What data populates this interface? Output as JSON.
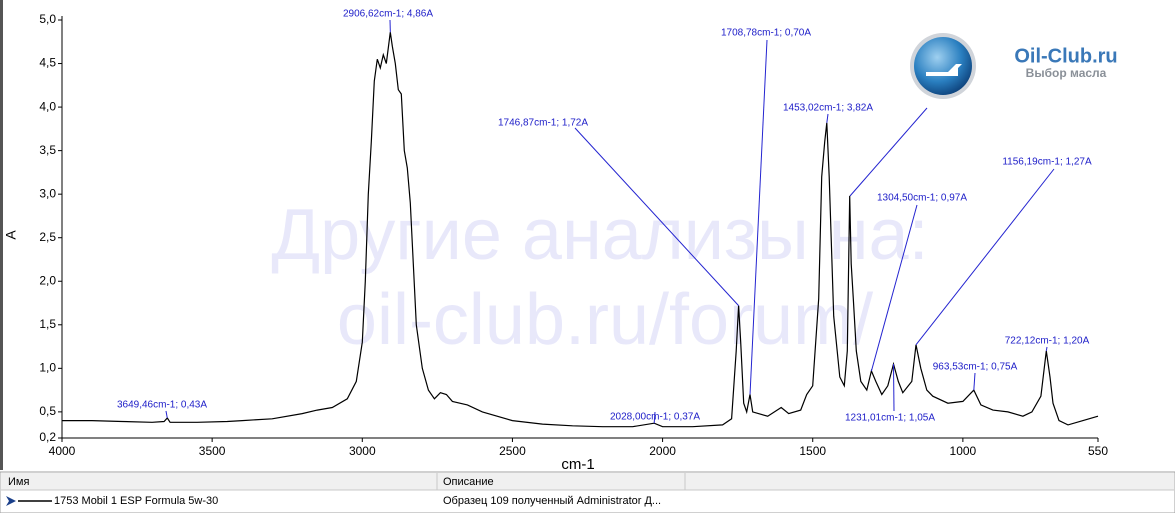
{
  "chart_data": {
    "type": "line",
    "xlabel": "cm-1",
    "ylabel": "A",
    "x_reversed": true,
    "xlim": [
      4000,
      550
    ],
    "ylim": [
      0.2,
      5.0
    ],
    "xticks": [
      4000,
      3500,
      3000,
      2500,
      2000,
      1500,
      1000,
      550
    ],
    "yticks": [
      {
        "value": 0.2,
        "label": "0,2"
      },
      {
        "value": 0.5,
        "label": "0,5"
      },
      {
        "value": 1.0,
        "label": "1,0"
      },
      {
        "value": 1.5,
        "label": "1,5"
      },
      {
        "value": 2.0,
        "label": "2,0"
      },
      {
        "value": 2.5,
        "label": "2,5"
      },
      {
        "value": 3.0,
        "label": "3,0"
      },
      {
        "value": 3.5,
        "label": "3,5"
      },
      {
        "value": 4.0,
        "label": "4,0"
      },
      {
        "value": 4.5,
        "label": "4,5"
      },
      {
        "value": 5.0,
        "label": "5,0"
      }
    ],
    "series": [
      {
        "name": "1753 Mobil 1 ESP Formula 5w-30",
        "color": "#000000",
        "x": [
          4000,
          3900,
          3800,
          3700,
          3660,
          3649.46,
          3640,
          3550,
          3450,
          3400,
          3300,
          3200,
          3150,
          3100,
          3050,
          3020,
          3000,
          2990,
          2980,
          2970,
          2960,
          2950,
          2940,
          2930,
          2920,
          2906.62,
          2900,
          2890,
          2880,
          2870,
          2860,
          2850,
          2840,
          2830,
          2820,
          2800,
          2780,
          2760,
          2740,
          2720,
          2700,
          2650,
          2600,
          2500,
          2400,
          2300,
          2200,
          2100,
          2028,
          2000,
          1900,
          1800,
          1770,
          1755,
          1746.87,
          1740,
          1730,
          1720,
          1708.78,
          1700,
          1650,
          1605,
          1580,
          1540,
          1520,
          1500,
          1480,
          1470,
          1460,
          1453.02,
          1445,
          1430,
          1410,
          1395,
          1385,
          1377,
          1372,
          1365,
          1355,
          1340,
          1320,
          1304.5,
          1290,
          1270,
          1250,
          1231.01,
          1215,
          1200,
          1170,
          1156.19,
          1140,
          1120,
          1100,
          1050,
          1000,
          963.53,
          940,
          900,
          850,
          800,
          770,
          740,
          722.12,
          710,
          700,
          680,
          650,
          600,
          550
        ],
        "values": [
          0.4,
          0.4,
          0.39,
          0.38,
          0.39,
          0.43,
          0.38,
          0.38,
          0.39,
          0.4,
          0.42,
          0.48,
          0.52,
          0.55,
          0.65,
          0.85,
          1.3,
          2.0,
          3.0,
          3.6,
          4.3,
          4.55,
          4.45,
          4.6,
          4.5,
          4.86,
          4.7,
          4.5,
          4.2,
          4.15,
          3.5,
          3.3,
          2.9,
          2.2,
          1.5,
          1.0,
          0.75,
          0.65,
          0.72,
          0.7,
          0.62,
          0.58,
          0.5,
          0.4,
          0.36,
          0.34,
          0.33,
          0.33,
          0.37,
          0.33,
          0.33,
          0.35,
          0.42,
          1.2,
          1.72,
          1.3,
          0.6,
          0.5,
          0.7,
          0.5,
          0.45,
          0.55,
          0.48,
          0.52,
          0.7,
          0.8,
          1.8,
          3.2,
          3.6,
          3.82,
          3.2,
          1.6,
          0.9,
          0.8,
          1.2,
          2.98,
          2.2,
          1.8,
          1.2,
          0.85,
          0.75,
          0.97,
          0.85,
          0.7,
          0.8,
          1.05,
          0.85,
          0.72,
          0.85,
          1.27,
          1.0,
          0.75,
          0.68,
          0.6,
          0.62,
          0.75,
          0.58,
          0.52,
          0.5,
          0.45,
          0.5,
          0.68,
          1.2,
          0.9,
          0.6,
          0.4,
          0.35,
          0.4,
          0.45
        ]
      }
    ],
    "annotations": [
      {
        "label": "3649,46cm-1; 0,43A",
        "x": 3649.46,
        "y": 0.43
      },
      {
        "label": "2906,62cm-1; 4,86A",
        "x": 2906.62,
        "y": 4.86
      },
      {
        "label": "1746,87cm-1; 1,72A",
        "x": 1746.87,
        "y": 1.72
      },
      {
        "label": "1708,78cm-1; 0,70A",
        "x": 1708.78,
        "y": 0.7
      },
      {
        "label": "1453,02cm-1; 3,82A",
        "x": 1453.02,
        "y": 3.82
      },
      {
        "label": "1304,50cm-1; 0,97A",
        "x": 1304.5,
        "y": 0.97
      },
      {
        "label": "1156,19cm-1; 1,27A",
        "x": 1156.19,
        "y": 1.27
      },
      {
        "label": "963,53cm-1; 0,75A",
        "x": 963.53,
        "y": 0.75
      },
      {
        "label": "722,12cm-1; 1,20A",
        "x": 722.12,
        "y": 1.2
      },
      {
        "label": "2028,00cm-1; 0,37A",
        "x": 2028.0,
        "y": 0.37
      },
      {
        "label": "1231,01cm-1; 1,05A",
        "x": 1231.01,
        "y": 1.05
      }
    ]
  },
  "watermark": [
    "Другие анализы на:",
    "oil-club.ru/forum/"
  ],
  "logo": {
    "title": "Oil-Club.ru",
    "subtitle": "Выбор масла"
  },
  "legend_table": {
    "headers": [
      "Имя",
      "Описание"
    ],
    "description": "Образец 109 полученный Administrator Д..."
  }
}
